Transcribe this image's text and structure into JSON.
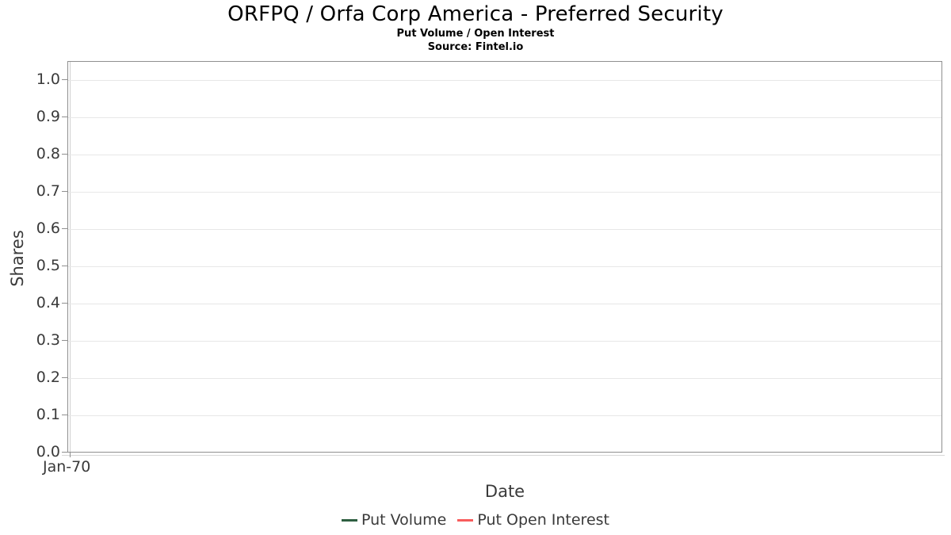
{
  "chart": {
    "title": "ORFPQ / Orfa Corp America - Preferred Security",
    "subtitle": "Put Volume / Open Interest",
    "source": "Source: Fintel.io",
    "xlabel": "Date",
    "ylabel": "Shares"
  },
  "colors": {
    "put_volume": "#2e5f41",
    "put_open_interest": "#f85c5c",
    "frame": "#8f8f8f",
    "gridline": "#e7e7e7",
    "text": "#3a3a3a"
  },
  "chart_data": {
    "type": "line",
    "title": "ORFPQ / Orfa Corp America - Preferred Security",
    "subtitle": "Put Volume / Open Interest",
    "source": "Source: Fintel.io",
    "xlabel": "Date",
    "ylabel": "Shares",
    "x_tick_labels": [
      "Jan-70"
    ],
    "y_tick_labels": [
      "0.0",
      "0.1",
      "0.2",
      "0.3",
      "0.4",
      "0.5",
      "0.6",
      "0.7",
      "0.8",
      "0.9",
      "1.0"
    ],
    "ylim": [
      0,
      1.05
    ],
    "grid": true,
    "legend_position": "bottom-center",
    "series": [
      {
        "name": "Put Volume",
        "color": "#2e5f41",
        "x": [],
        "values": []
      },
      {
        "name": "Put Open Interest",
        "color": "#f85c5c",
        "x": [],
        "values": []
      }
    ]
  }
}
